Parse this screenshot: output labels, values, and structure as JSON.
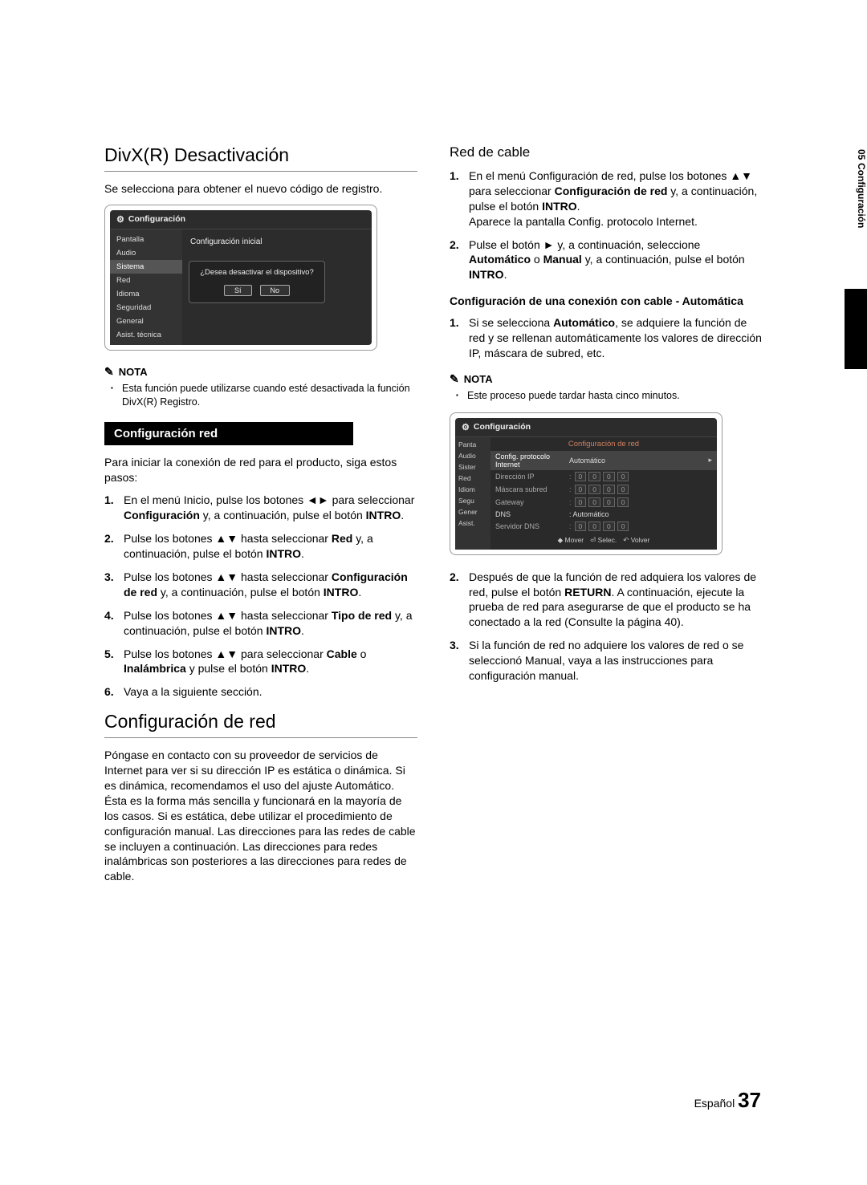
{
  "side_tab": {
    "num": "05",
    "label": "Configuración"
  },
  "footer": {
    "lang": "Español",
    "page": "37"
  },
  "left": {
    "h_divx": "DivX(R) Desactivación",
    "p_divx": "Se selecciona para obtener el nuevo código de registro.",
    "shot1": {
      "title": "Configuración",
      "menu": [
        "Pantalla",
        "Audio",
        "Sistema",
        "Red",
        "Idioma",
        "Seguridad",
        "General",
        "Asist. técnica"
      ],
      "cfg_initial": "Configuración inicial",
      "dialog_q": "¿Desea desactivar el dispositivo?",
      "btn_yes": "Sí",
      "btn_no": "No"
    },
    "nota_label": "NOTA",
    "nota1": "Esta función puede utilizarse cuando esté desactivada la función DivX(R) Registro.",
    "bar_cfg_red": "Configuración red",
    "p_red_intro": "Para iniciar la conexión de red para el producto, siga estos pasos:",
    "steps_red": [
      "En el menú Inicio, pulse los botones ◄► para seleccionar <b>Configuración</b> y, a continuación, pulse el botón <b>INTRO</b>.",
      "Pulse los botones ▲▼ hasta seleccionar <b>Red</b> y, a continuación, pulse el botón <b>INTRO</b>.",
      "Pulse los botones ▲▼ hasta seleccionar <b>Configuración de red</b> y, a continuación, pulse el botón <b>INTRO</b>.",
      "Pulse los botones ▲▼ hasta seleccionar <b>Tipo de red</b> y, a continuación, pulse el botón <b>INTRO</b>.",
      "Pulse los botones ▲▼ para seleccionar <b>Cable</b> o <b>Inalámbrica</b> y pulse el botón <b>INTRO</b>.",
      "Vaya a la siguiente sección."
    ],
    "h_cfg_de_red": "Configuración de red",
    "p_cfg_de_red": "Póngase en contacto con su proveedor de servicios de Internet para ver si su dirección IP es estática o dinámica. Si es dinámica, recomendamos el uso del ajuste Automático. Ésta es la forma más sencilla y funcionará en la mayoría de los casos. Si es estática, debe utilizar el procedimiento de configuración manual. Las direcciones para las redes de cable se incluyen a continuación. Las direcciones para redes inalámbricas son posteriores a las direcciones para redes de cable."
  },
  "right": {
    "h_cable": "Red de cable",
    "steps_cable": [
      "En el menú Configuración de red, pulse los botones ▲▼ para seleccionar <b>Configuración de red</b> y, a continuación, pulse el botón <b>INTRO</b>.<br>Aparece la pantalla Config. protocolo Internet.",
      "Pulse el botón ► y, a continuación, seleccione <b>Automático</b> o <b>Manual</b> y, a continuación, pulse el botón <b>INTRO</b>."
    ],
    "sub_bold": "Configuración de una conexión con cable - Automática",
    "steps_auto": [
      "Si se selecciona <b>Automático</b>, se adquiere la función de red y se rellenan automáticamente los valores de dirección IP, máscara de subred, etc."
    ],
    "nota_label": "NOTA",
    "nota2": "Este proceso puede tardar hasta cinco minutos.",
    "shot2": {
      "title": "Configuración",
      "side": [
        "Panta",
        "Audio",
        "Sister",
        "Red",
        "Idiom",
        "Segu",
        "Gener",
        "Asist."
      ],
      "heading": "Configuración de red",
      "proto_label": "Config. protocolo Internet",
      "proto_val": "Automático",
      "rows": [
        {
          "lbl": "Dirección IP",
          "ip": [
            "0",
            "0",
            "0",
            "0"
          ]
        },
        {
          "lbl": "Máscara subred",
          "ip": [
            "0",
            "0",
            "0",
            "0"
          ]
        },
        {
          "lbl": "Gateway",
          "ip": [
            "0",
            "0",
            "0",
            "0"
          ]
        }
      ],
      "dns_lbl": "DNS",
      "dns_val": ": Automático",
      "dns_server_lbl": "Servidor DNS",
      "dns_server_ip": [
        "0",
        "0",
        "0",
        "0"
      ],
      "footer": [
        "◆ Mover",
        "⏎ Selec.",
        "↶ Volver"
      ]
    },
    "steps_after": [
      "Después de que la función de red adquiera los valores de red, pulse el botón <b>RETURN</b>. A continuación, ejecute la prueba de red para asegurarse de que el producto se ha conectado a la red (Consulte la página 40).",
      "Si la función de red no adquiere los valores de red o se seleccionó Manual, vaya a las instrucciones para configuración manual."
    ]
  }
}
